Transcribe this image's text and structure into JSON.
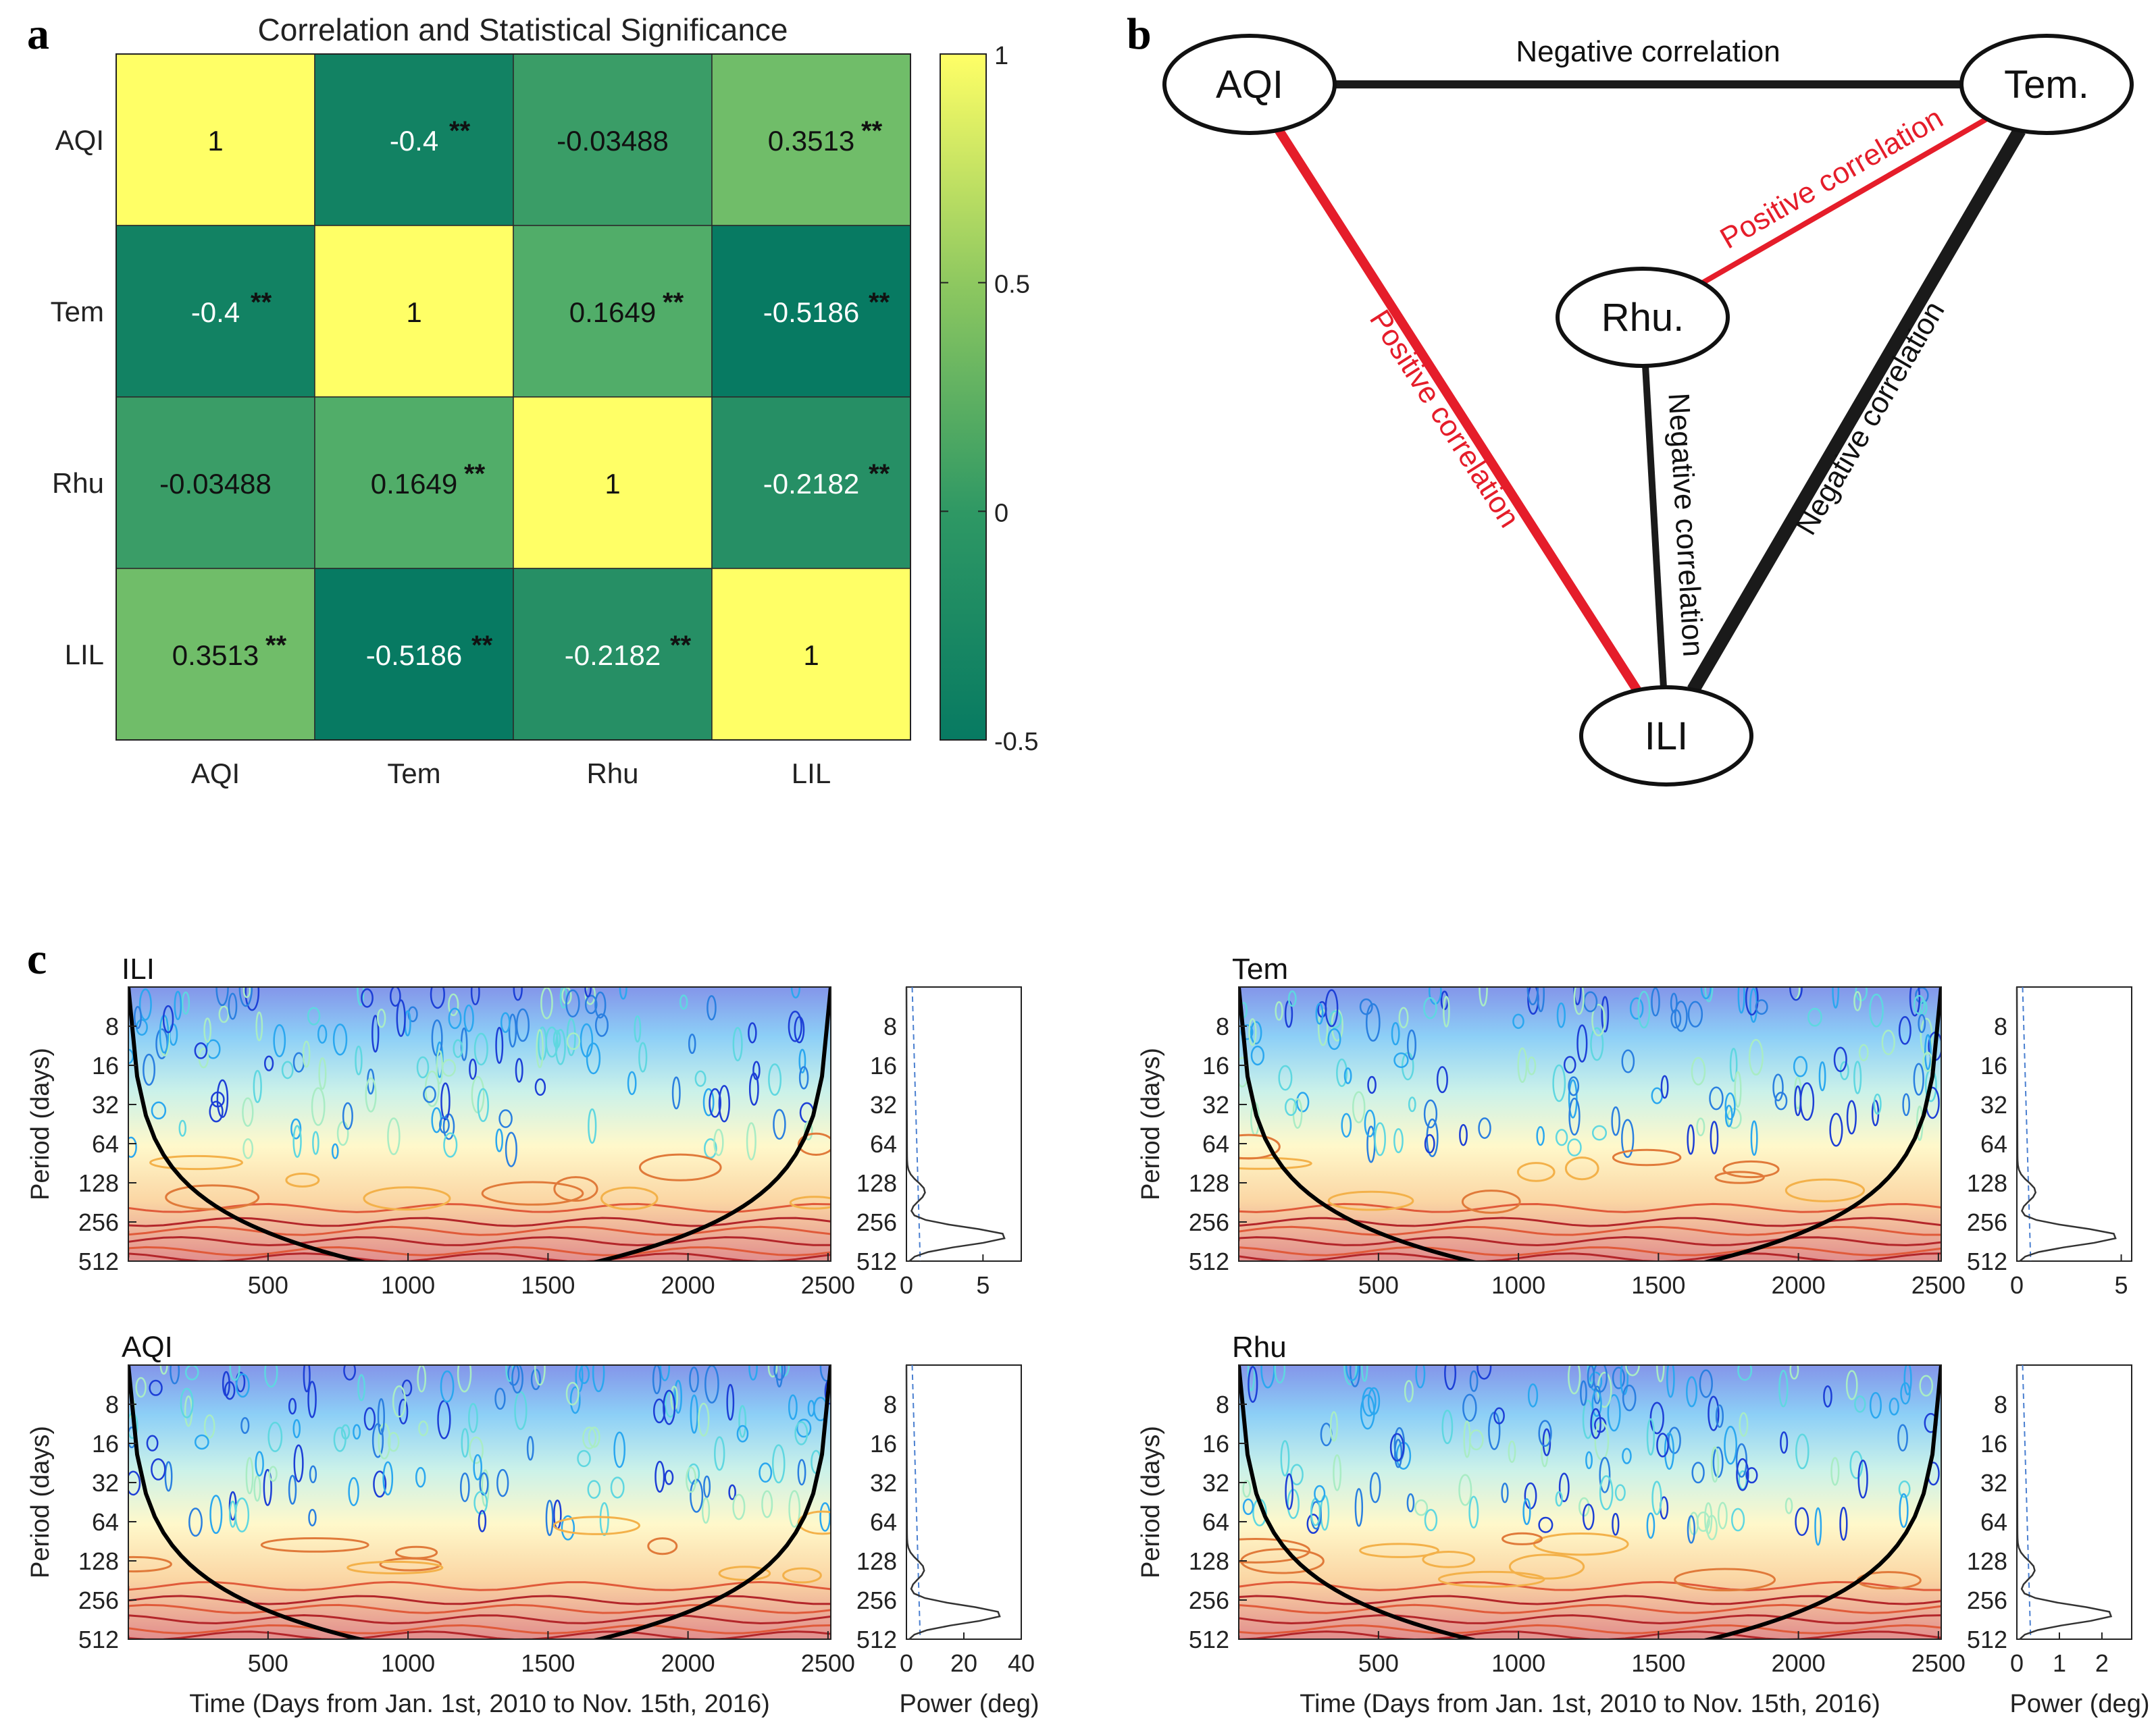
{
  "panels": {
    "a": "a",
    "b": "b",
    "c": "c"
  },
  "chart_data": [
    {
      "type": "heatmap",
      "title": "Correlation and Statistical Significance",
      "row_labels": [
        "AQI",
        "Tem",
        "Rhu",
        "LIL"
      ],
      "col_labels": [
        "AQI",
        "Tem",
        "Rhu",
        "LIL"
      ],
      "values": [
        [
          1,
          -0.4,
          -0.03488,
          0.3513
        ],
        [
          -0.4,
          1,
          0.1649,
          -0.5186
        ],
        [
          -0.03488,
          0.1649,
          1,
          -0.2182
        ],
        [
          0.3513,
          -0.5186,
          -0.2182,
          1
        ]
      ],
      "cell_labels": [
        [
          "1",
          "-0.4",
          "-0.03488",
          "0.3513"
        ],
        [
          "-0.4",
          "1",
          "0.1649",
          "-0.5186"
        ],
        [
          "-0.03488",
          "0.1649",
          "1",
          "-0.2182"
        ],
        [
          "0.3513",
          "-0.5186",
          "-0.2182",
          "1"
        ]
      ],
      "significance": [
        [
          "",
          "**",
          "",
          "**"
        ],
        [
          "**",
          "",
          "**",
          "**"
        ],
        [
          "",
          "**",
          "",
          "**"
        ],
        [
          "**",
          "**",
          "**",
          ""
        ]
      ],
      "colorbar": {
        "min": -0.5,
        "max": 1,
        "ticks": [
          "1",
          "0.5",
          "0",
          "-0.5"
        ],
        "tick_values": [
          1,
          0.5,
          0,
          -0.5
        ]
      },
      "colormap": {
        "low": "#077a62",
        "mid": "#5ab36a",
        "high": "#ffff66"
      }
    },
    {
      "type": "diagram",
      "nodes": [
        {
          "id": "aqi",
          "label": "AQI"
        },
        {
          "id": "tem",
          "label": "Tem."
        },
        {
          "id": "rhu",
          "label": "Rhu."
        },
        {
          "id": "ili",
          "label": "ILI"
        }
      ],
      "edges": [
        {
          "from": "aqi",
          "to": "tem",
          "label": "Negative correlation",
          "color": "#1a1a1a"
        },
        {
          "from": "aqi",
          "to": "ili",
          "label": "Positive correlation",
          "color": "#e51d2a"
        },
        {
          "from": "rhu",
          "to": "tem",
          "label": "Positive correlation",
          "color": "#e51d2a"
        },
        {
          "from": "rhu",
          "to": "ili",
          "label": "Negative correlation",
          "color": "#1a1a1a"
        },
        {
          "from": "tem",
          "to": "ili",
          "label": "Negative correlation",
          "color": "#1a1a1a"
        }
      ]
    },
    {
      "type": "heatmap",
      "subplots": [
        {
          "title": "ILI",
          "power_ticks": [
            "0",
            "5"
          ],
          "power_max": 7.5,
          "power_peak": 6.5,
          "show_xlabel": false
        },
        {
          "title": "Tem",
          "power_ticks": [
            "0",
            "5"
          ],
          "power_max": 5.5,
          "power_peak": 4.8,
          "show_xlabel": false
        },
        {
          "title": "AQI",
          "power_ticks": [
            "0",
            "20",
            "40"
          ],
          "power_max": 40,
          "power_peak": 33,
          "show_xlabel": true
        },
        {
          "title": "Rhu",
          "power_ticks": [
            "0",
            "1",
            "2"
          ],
          "power_max": 2.7,
          "power_peak": 2.25,
          "show_xlabel": true
        }
      ],
      "x_ticks": [
        "500",
        "1000",
        "1500",
        "2000",
        "2500"
      ],
      "x_tick_values": [
        500,
        1000,
        1500,
        2000,
        2500
      ],
      "xlim": [
        1,
        2510
      ],
      "y_ticks": [
        "8",
        "16",
        "32",
        "64",
        "128",
        "256",
        "512"
      ],
      "y_tick_values": [
        8,
        16,
        32,
        64,
        128,
        256,
        512
      ],
      "ylim": [
        4,
        512
      ],
      "y_scale": "log2",
      "ylabel": "Period (days)",
      "xlabel": "Time (Days from Jan. 1st, 2010 to Nov. 15th, 2016)",
      "power_xlabel": "Power (deg)"
    }
  ]
}
